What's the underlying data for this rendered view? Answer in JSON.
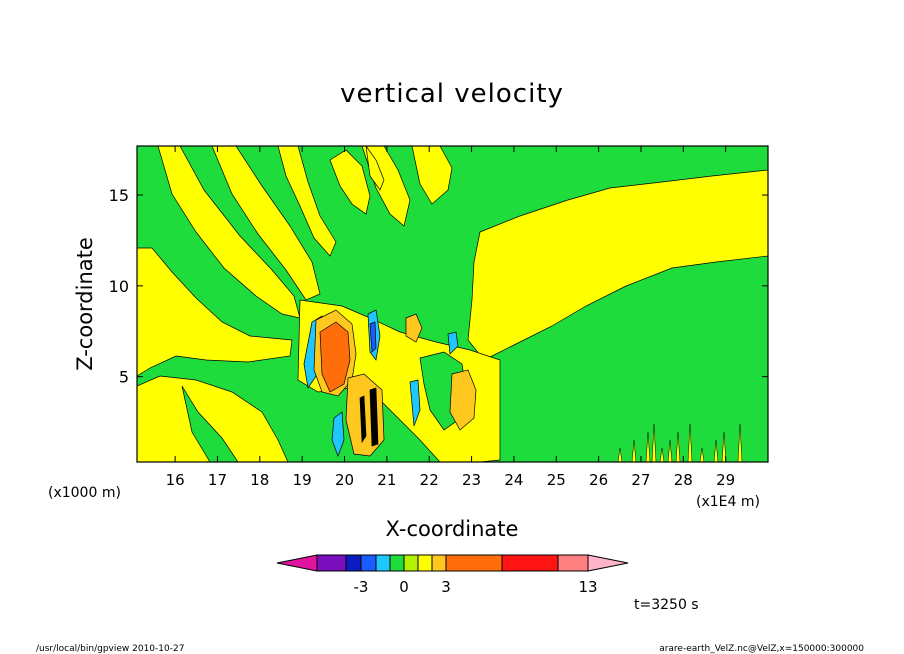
{
  "chart_data": {
    "type": "heatmap",
    "title": "vertical velocity",
    "xlabel": "X-coordinate",
    "ylabel": "Z-coordinate",
    "x_units_left": "(x1000 m)",
    "x_units_right": "(x1E4 m)",
    "x_ticks": [
      "16",
      "17",
      "18",
      "19",
      "20",
      "21",
      "22",
      "23",
      "24",
      "25",
      "26",
      "27",
      "28",
      "29"
    ],
    "y_ticks": [
      "5",
      "10",
      "15"
    ],
    "xlim": [
      15.1,
      30.0
    ],
    "ylim": [
      0.3,
      17.7
    ],
    "colorbar": {
      "colors": [
        "#e0149e",
        "#7a0fbf",
        "#0a1cbf",
        "#1a5cff",
        "#1ec8ff",
        "#1edc3c",
        "#b4f000",
        "#ffff00",
        "#ffc81e",
        "#ff6e0a",
        "#ff1414",
        "#ff8080",
        "#ffb4c8"
      ],
      "labels": [
        "-3",
        "0",
        "3",
        "13"
      ]
    },
    "time_label": "t=3250 s"
  },
  "footer": {
    "left": "/usr/local/bin/gpview  2010-10-27",
    "right": "arare-earth_VelZ.nc@VelZ,x=150000:300000"
  },
  "colors": {
    "green": "#1edc3c",
    "yellow": "#ffff00",
    "light_yellow": "#b4f000",
    "cyan": "#1ec8ff",
    "blue": "#1a5cff",
    "orange": "#ff6e0a",
    "gold": "#ffc81e",
    "red": "#ff1414",
    "dark": "#000000"
  }
}
